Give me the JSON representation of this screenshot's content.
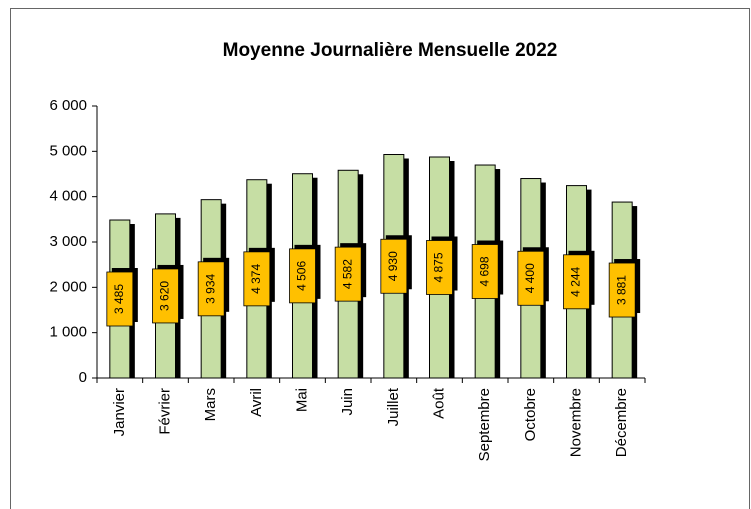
{
  "chart_data": {
    "type": "bar",
    "title": "Moyenne Journalière Mensuelle 2022",
    "categories": [
      "Janvier",
      "Février",
      "Mars",
      "Avril",
      "Mai",
      "Juin",
      "Juillet",
      "Août",
      "Septembre",
      "Octobre",
      "Novembre",
      "Décembre"
    ],
    "values": [
      3485,
      3620,
      3934,
      4374,
      4506,
      4582,
      4930,
      4875,
      4698,
      4400,
      4244,
      3881
    ],
    "value_labels": [
      "3 485",
      "3 620",
      "3 934",
      "4 374",
      "4 506",
      "4 582",
      "4 930",
      "4 875",
      "4 698",
      "4 400",
      "4 244",
      "3 881"
    ],
    "color": "#c6dea4",
    "ylim": [
      0,
      6000
    ],
    "yticks": [
      0,
      {
        "value": 1000,
        "label": "1 000"
      },
      {
        "value": 2000,
        "label": "2 000"
      },
      {
        "value": 3000,
        "label": "3 000"
      },
      {
        "value": 4000,
        "label": "4 000"
      },
      {
        "value": 5000,
        "label": "5 000"
      },
      {
        "value": 6000,
        "label": "6 000"
      }
    ],
    "grid": false
  }
}
